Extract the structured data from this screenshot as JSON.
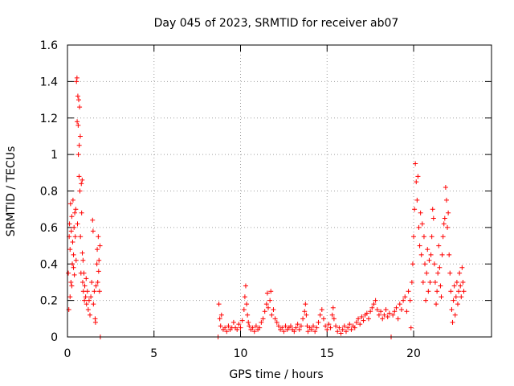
{
  "chart_data": {
    "type": "scatter",
    "title": "Day 045 of 2023, SRMTID for receiver ab07",
    "xlabel": "GPS time / hours",
    "ylabel": "SRMTID / TECUs",
    "xlim": [
      0,
      24.5
    ],
    "ylim": [
      0,
      1.6
    ],
    "xticks": [
      0,
      5,
      10,
      15,
      20
    ],
    "xtick_labels": [
      "0",
      "5",
      "10",
      "15",
      "20"
    ],
    "yticks": [
      0,
      0.2,
      0.4,
      0.6,
      0.8,
      1.0,
      1.2,
      1.4,
      1.6
    ],
    "ytick_labels": [
      "0",
      "0.2",
      "0.4",
      "0.6",
      "0.8",
      "1",
      "1.2",
      "1.4",
      "1.6"
    ],
    "grid": true,
    "marker": "+",
    "color": "#ff0000",
    "series": [
      {
        "name": "SRMTID",
        "points": [
          [
            0.05,
            0.35
          ],
          [
            0.1,
            0.55
          ],
          [
            0.12,
            0.62
          ],
          [
            0.15,
            0.48
          ],
          [
            0.18,
            0.73
          ],
          [
            0.2,
            0.3
          ],
          [
            0.22,
            0.58
          ],
          [
            0.25,
            0.66
          ],
          [
            0.28,
            0.4
          ],
          [
            0.3,
            0.52
          ],
          [
            0.32,
            0.75
          ],
          [
            0.35,
            0.45
          ],
          [
            0.38,
            0.6
          ],
          [
            0.4,
            0.34
          ],
          [
            0.42,
            0.68
          ],
          [
            0.45,
            0.55
          ],
          [
            0.48,
            0.7
          ],
          [
            0.5,
            0.42
          ],
          [
            0.52,
            1.4
          ],
          [
            0.55,
            1.42
          ],
          [
            0.56,
            1.18
          ],
          [
            0.58,
            0.62
          ],
          [
            0.6,
            1.32
          ],
          [
            0.62,
            1.16
          ],
          [
            0.63,
            1.0
          ],
          [
            0.65,
            1.3
          ],
          [
            0.67,
            0.88
          ],
          [
            0.68,
            1.05
          ],
          [
            0.7,
            1.26
          ],
          [
            0.72,
            0.8
          ],
          [
            0.74,
            1.1
          ],
          [
            0.75,
            0.55
          ],
          [
            0.78,
            0.35
          ],
          [
            0.8,
            0.84
          ],
          [
            0.82,
            0.68
          ],
          [
            0.85,
            0.86
          ],
          [
            0.86,
            0.46
          ],
          [
            0.88,
            0.3
          ],
          [
            0.9,
            0.42
          ],
          [
            0.92,
            0.25
          ],
          [
            0.95,
            0.35
          ],
          [
            0.98,
            0.2
          ],
          [
            1.0,
            0.28
          ],
          [
            1.05,
            0.22
          ],
          [
            1.08,
            0.32
          ],
          [
            1.1,
            0.18
          ],
          [
            1.15,
            0.25
          ],
          [
            1.2,
            0.15
          ],
          [
            1.25,
            0.2
          ],
          [
            1.3,
            0.12
          ],
          [
            1.35,
            0.22
          ],
          [
            1.4,
            0.3
          ],
          [
            1.45,
            0.64
          ],
          [
            1.48,
            0.58
          ],
          [
            1.5,
            0.18
          ],
          [
            1.55,
            0.25
          ],
          [
            1.6,
            0.1
          ],
          [
            1.62,
            0.08
          ],
          [
            1.65,
            0.28
          ],
          [
            1.7,
            0.4
          ],
          [
            1.72,
            0.48
          ],
          [
            1.75,
            0.3
          ],
          [
            1.78,
            0.55
          ],
          [
            1.8,
            0.36
          ],
          [
            1.82,
            0.42
          ],
          [
            1.85,
            0.25
          ],
          [
            1.88,
            0.5
          ],
          [
            1.9,
            0.0
          ],
          [
            0.08,
            0.15
          ],
          [
            0.15,
            0.22
          ],
          [
            0.25,
            0.28
          ],
          [
            0.35,
            0.38
          ],
          [
            8.7,
            0.0
          ],
          [
            8.75,
            0.18
          ],
          [
            8.8,
            0.1
          ],
          [
            8.85,
            0.06
          ],
          [
            8.9,
            0.12
          ],
          [
            9.0,
            0.04
          ],
          [
            9.1,
            0.05
          ],
          [
            9.2,
            0.03
          ],
          [
            9.3,
            0.06
          ],
          [
            9.4,
            0.04
          ],
          [
            9.5,
            0.05
          ],
          [
            9.6,
            0.08
          ],
          [
            9.7,
            0.05
          ],
          [
            9.8,
            0.04
          ],
          [
            9.9,
            0.07
          ],
          [
            10.0,
            0.05
          ],
          [
            10.1,
            0.09
          ],
          [
            10.2,
            0.15
          ],
          [
            10.25,
            0.22
          ],
          [
            10.3,
            0.28
          ],
          [
            10.35,
            0.18
          ],
          [
            10.4,
            0.12
          ],
          [
            10.45,
            0.08
          ],
          [
            10.5,
            0.06
          ],
          [
            10.6,
            0.04
          ],
          [
            10.7,
            0.05
          ],
          [
            10.8,
            0.03
          ],
          [
            10.9,
            0.06
          ],
          [
            11.0,
            0.04
          ],
          [
            11.1,
            0.05
          ],
          [
            11.2,
            0.08
          ],
          [
            11.3,
            0.1
          ],
          [
            11.4,
            0.14
          ],
          [
            11.5,
            0.18
          ],
          [
            11.55,
            0.24
          ],
          [
            11.6,
            0.16
          ],
          [
            11.7,
            0.2
          ],
          [
            11.75,
            0.25
          ],
          [
            11.8,
            0.12
          ],
          [
            11.9,
            0.15
          ],
          [
            12.0,
            0.1
          ],
          [
            12.1,
            0.08
          ],
          [
            12.2,
            0.06
          ],
          [
            12.3,
            0.04
          ],
          [
            12.4,
            0.05
          ],
          [
            12.5,
            0.03
          ],
          [
            12.6,
            0.06
          ],
          [
            12.7,
            0.04
          ],
          [
            12.8,
            0.05
          ],
          [
            12.9,
            0.06
          ],
          [
            13.0,
            0.04
          ],
          [
            13.1,
            0.03
          ],
          [
            13.2,
            0.05
          ],
          [
            13.3,
            0.07
          ],
          [
            13.4,
            0.04
          ],
          [
            13.5,
            0.06
          ],
          [
            13.6,
            0.1
          ],
          [
            13.7,
            0.14
          ],
          [
            13.75,
            0.18
          ],
          [
            13.8,
            0.12
          ],
          [
            13.85,
            0.06
          ],
          [
            13.9,
            0.03
          ],
          [
            14.0,
            0.05
          ],
          [
            14.1,
            0.04
          ],
          [
            14.2,
            0.06
          ],
          [
            14.3,
            0.03
          ],
          [
            14.4,
            0.05
          ],
          [
            14.5,
            0.08
          ],
          [
            14.6,
            0.12
          ],
          [
            14.7,
            0.15
          ],
          [
            14.8,
            0.1
          ],
          [
            14.9,
            0.06
          ],
          [
            15.0,
            0.04
          ],
          [
            15.1,
            0.07
          ],
          [
            15.2,
            0.05
          ],
          [
            15.3,
            0.12
          ],
          [
            15.35,
            0.16
          ],
          [
            15.4,
            0.1
          ],
          [
            15.5,
            0.06
          ],
          [
            15.6,
            0.03
          ],
          [
            15.7,
            0.05
          ],
          [
            15.8,
            0.02
          ],
          [
            15.9,
            0.04
          ],
          [
            16.0,
            0.06
          ],
          [
            16.1,
            0.03
          ],
          [
            16.2,
            0.05
          ],
          [
            16.3,
            0.07
          ],
          [
            16.4,
            0.04
          ],
          [
            16.5,
            0.06
          ],
          [
            16.6,
            0.05
          ],
          [
            16.7,
            0.08
          ],
          [
            16.8,
            0.1
          ],
          [
            16.9,
            0.07
          ],
          [
            17.0,
            0.11
          ],
          [
            17.1,
            0.09
          ],
          [
            17.2,
            0.12
          ],
          [
            17.3,
            0.13
          ],
          [
            17.4,
            0.1
          ],
          [
            17.5,
            0.14
          ],
          [
            17.6,
            0.16
          ],
          [
            17.7,
            0.18
          ],
          [
            17.8,
            0.2
          ],
          [
            17.9,
            0.15
          ],
          [
            18.0,
            0.12
          ],
          [
            18.1,
            0.14
          ],
          [
            18.2,
            0.1
          ],
          [
            18.3,
            0.12
          ],
          [
            18.4,
            0.15
          ],
          [
            18.5,
            0.11
          ],
          [
            18.6,
            0.13
          ],
          [
            18.7,
            0.0
          ],
          [
            18.8,
            0.12
          ],
          [
            18.9,
            0.14
          ],
          [
            19.0,
            0.16
          ],
          [
            19.1,
            0.1
          ],
          [
            19.2,
            0.18
          ],
          [
            19.3,
            0.15
          ],
          [
            19.4,
            0.2
          ],
          [
            19.5,
            0.22
          ],
          [
            19.6,
            0.14
          ],
          [
            19.7,
            0.25
          ],
          [
            19.8,
            0.2
          ],
          [
            19.85,
            0.05
          ],
          [
            19.9,
            0.3
          ],
          [
            19.95,
            0.4
          ],
          [
            20.0,
            0.55
          ],
          [
            20.05,
            0.7
          ],
          [
            20.1,
            0.95
          ],
          [
            20.15,
            0.85
          ],
          [
            20.2,
            0.75
          ],
          [
            20.25,
            0.88
          ],
          [
            20.3,
            0.6
          ],
          [
            20.35,
            0.5
          ],
          [
            20.4,
            0.68
          ],
          [
            20.45,
            0.45
          ],
          [
            20.5,
            0.62
          ],
          [
            20.55,
            0.3
          ],
          [
            20.6,
            0.55
          ],
          [
            20.65,
            0.4
          ],
          [
            20.7,
            0.2
          ],
          [
            20.75,
            0.35
          ],
          [
            20.8,
            0.48
          ],
          [
            20.85,
            0.25
          ],
          [
            20.9,
            0.42
          ],
          [
            20.95,
            0.3
          ],
          [
            21.0,
            0.45
          ],
          [
            21.05,
            0.55
          ],
          [
            21.1,
            0.7
          ],
          [
            21.15,
            0.65
          ],
          [
            21.2,
            0.4
          ],
          [
            21.25,
            0.3
          ],
          [
            21.3,
            0.18
          ],
          [
            21.35,
            0.25
          ],
          [
            21.4,
            0.35
          ],
          [
            21.45,
            0.5
          ],
          [
            21.5,
            0.38
          ],
          [
            21.55,
            0.28
          ],
          [
            21.6,
            0.22
          ],
          [
            21.65,
            0.45
          ],
          [
            21.7,
            0.55
          ],
          [
            21.75,
            0.62
          ],
          [
            21.8,
            0.65
          ],
          [
            21.85,
            0.82
          ],
          [
            21.9,
            0.75
          ],
          [
            21.95,
            0.6
          ],
          [
            22.0,
            0.68
          ],
          [
            22.05,
            0.45
          ],
          [
            22.1,
            0.35
          ],
          [
            22.15,
            0.25
          ],
          [
            22.2,
            0.15
          ],
          [
            22.25,
            0.08
          ],
          [
            22.3,
            0.2
          ],
          [
            22.35,
            0.28
          ],
          [
            22.4,
            0.12
          ],
          [
            22.45,
            0.22
          ],
          [
            22.5,
            0.3
          ],
          [
            22.55,
            0.18
          ],
          [
            22.6,
            0.25
          ],
          [
            22.65,
            0.35
          ],
          [
            22.7,
            0.28
          ],
          [
            22.75,
            0.22
          ],
          [
            22.8,
            0.38
          ],
          [
            22.85,
            0.3
          ],
          [
            22.9,
            0.25
          ]
        ]
      }
    ]
  }
}
